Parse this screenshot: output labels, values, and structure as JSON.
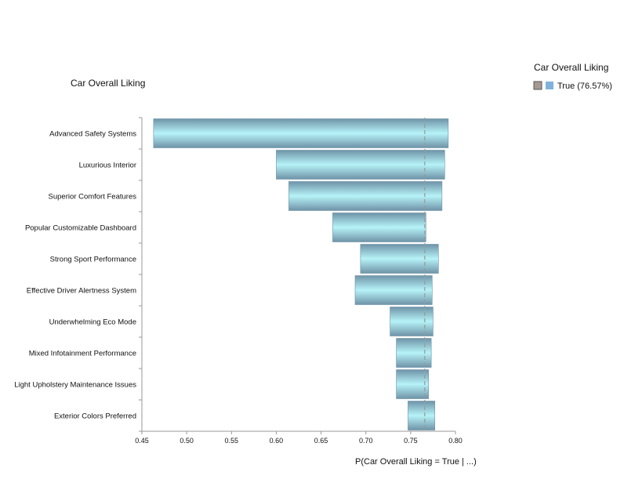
{
  "chart_data": {
    "type": "bar",
    "orientation": "horizontal",
    "style": "tornado",
    "title": "Car Overall Liking",
    "xlabel": "P(Car Overall Liking = True | ...)",
    "ylabel": "",
    "xlim": [
      0.45,
      0.8
    ],
    "xticks": [
      "0.45",
      "0.50",
      "0.55",
      "0.60",
      "0.65",
      "0.70",
      "0.75",
      "0.80"
    ],
    "reference_value": 0.7657,
    "categories": [
      "Advanced Safety Systems",
      "Luxurious Interior",
      "Superior Comfort Features",
      "Popular Customizable Dashboard",
      "Strong Sport Performance",
      "Effective Driver Alertness System",
      "Underwhelming Eco Mode",
      "Mixed Infotainment Performance",
      "Light Upholstery Maintenance Issues",
      "Exterior Colors Preferred"
    ],
    "ranges": [
      [
        0.463,
        0.792
      ],
      [
        0.6,
        0.788
      ],
      [
        0.614,
        0.785
      ],
      [
        0.663,
        0.767
      ],
      [
        0.694,
        0.781
      ],
      [
        0.688,
        0.774
      ],
      [
        0.727,
        0.775
      ],
      [
        0.734,
        0.773
      ],
      [
        0.734,
        0.77
      ],
      [
        0.747,
        0.777
      ]
    ],
    "legend": {
      "title": "Car Overall Liking",
      "items": [
        {
          "label": "True (76.57%)",
          "color": "#7fb3dc"
        }
      ]
    },
    "bar_color": "#aee6f0",
    "bar_edge_color": "#6a93a8",
    "reference_line_color": "#999999",
    "grid": false,
    "legend_position": "top-right"
  }
}
